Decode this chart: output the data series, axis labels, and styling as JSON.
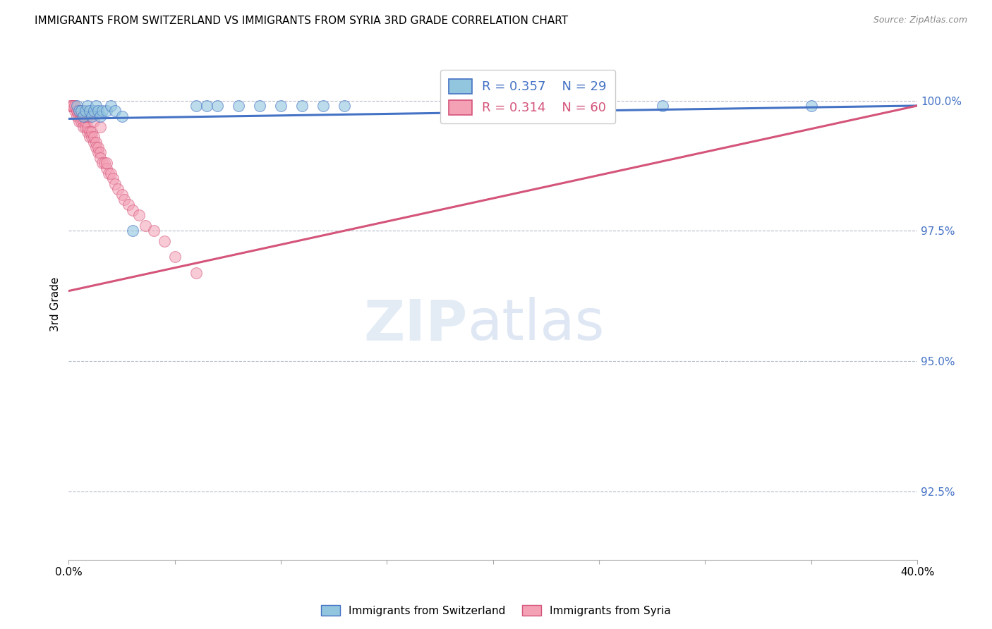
{
  "title": "IMMIGRANTS FROM SWITZERLAND VS IMMIGRANTS FROM SYRIA 3RD GRADE CORRELATION CHART",
  "source": "Source: ZipAtlas.com",
  "ylabel": "3rd Grade",
  "ytick_labels": [
    "100.0%",
    "97.5%",
    "95.0%",
    "92.5%"
  ],
  "ytick_values": [
    1.0,
    0.975,
    0.95,
    0.925
  ],
  "xmin": 0.0,
  "xmax": 0.4,
  "ymin": 0.912,
  "ymax": 1.01,
  "legend_r_swiss": "R = 0.357",
  "legend_n_swiss": "N = 29",
  "legend_r_syria": "R = 0.314",
  "legend_n_syria": "N = 60",
  "legend_label_swiss": "Immigrants from Switzerland",
  "legend_label_syria": "Immigrants from Syria",
  "color_swiss": "#92c5de",
  "color_syria": "#f4a0b5",
  "color_swiss_line": "#4472c4",
  "color_syria_line": "#d4547a",
  "swiss_x": [
    0.004,
    0.005,
    0.006,
    0.007,
    0.008,
    0.009,
    0.01,
    0.011,
    0.012,
    0.013,
    0.014,
    0.015,
    0.016,
    0.018,
    0.02,
    0.022,
    0.025,
    0.03,
    0.06,
    0.065,
    0.07,
    0.08,
    0.09,
    0.1,
    0.11,
    0.12,
    0.13,
    0.28,
    0.35
  ],
  "swiss_y": [
    0.999,
    0.998,
    0.998,
    0.997,
    0.998,
    0.999,
    0.998,
    0.997,
    0.998,
    0.999,
    0.998,
    0.997,
    0.998,
    0.998,
    0.999,
    0.998,
    0.997,
    0.975,
    0.999,
    0.999,
    0.999,
    0.999,
    0.999,
    0.999,
    0.999,
    0.999,
    0.999,
    0.999,
    0.999
  ],
  "syria_x": [
    0.001,
    0.002,
    0.003,
    0.003,
    0.004,
    0.004,
    0.005,
    0.005,
    0.005,
    0.006,
    0.006,
    0.007,
    0.007,
    0.008,
    0.008,
    0.009,
    0.009,
    0.01,
    0.01,
    0.011,
    0.011,
    0.012,
    0.012,
    0.013,
    0.013,
    0.014,
    0.014,
    0.015,
    0.015,
    0.016,
    0.017,
    0.018,
    0.018,
    0.019,
    0.02,
    0.021,
    0.022,
    0.023,
    0.025,
    0.026,
    0.028,
    0.03,
    0.033,
    0.036,
    0.04,
    0.045,
    0.05,
    0.06,
    0.001,
    0.002,
    0.003,
    0.004,
    0.005,
    0.006,
    0.007,
    0.008,
    0.009,
    0.01,
    0.012,
    0.015
  ],
  "syria_y": [
    0.999,
    0.999,
    0.999,
    0.998,
    0.998,
    0.997,
    0.997,
    0.996,
    0.998,
    0.997,
    0.996,
    0.996,
    0.995,
    0.995,
    0.996,
    0.994,
    0.995,
    0.994,
    0.993,
    0.993,
    0.994,
    0.992,
    0.993,
    0.992,
    0.991,
    0.99,
    0.991,
    0.99,
    0.989,
    0.988,
    0.988,
    0.987,
    0.988,
    0.986,
    0.986,
    0.985,
    0.984,
    0.983,
    0.982,
    0.981,
    0.98,
    0.979,
    0.978,
    0.976,
    0.975,
    0.973,
    0.97,
    0.967,
    0.999,
    0.999,
    0.999,
    0.998,
    0.998,
    0.998,
    0.998,
    0.997,
    0.997,
    0.997,
    0.996,
    0.995
  ],
  "swiss_line_x": [
    0.0,
    0.4
  ],
  "swiss_line_y": [
    0.9965,
    0.999
  ],
  "syria_line_x": [
    0.0,
    0.4
  ],
  "syria_line_y": [
    0.9635,
    0.999
  ]
}
